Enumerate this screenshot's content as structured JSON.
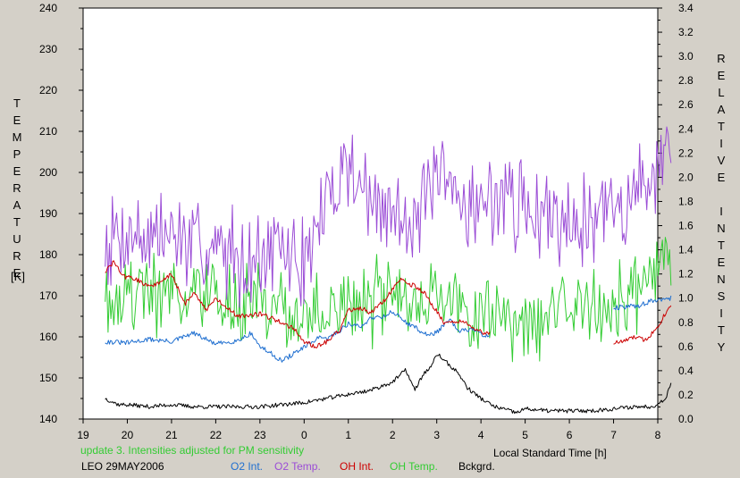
{
  "chart_data": {
    "type": "line",
    "left_axis": {
      "label_letters": [
        "T",
        "E",
        "M",
        "P",
        "E",
        "R",
        "A",
        "T",
        "U",
        "R",
        "E"
      ],
      "unit": "[K]",
      "ylim": [
        140,
        240
      ],
      "ticks": [
        140,
        150,
        160,
        170,
        180,
        190,
        200,
        210,
        220,
        230,
        240
      ]
    },
    "right_axis": {
      "label_words": [
        [
          "R",
          "E",
          "L",
          "A",
          "T",
          "I",
          "V",
          "E"
        ],
        [
          "I",
          "N",
          "T",
          "E",
          "N",
          "S",
          "I",
          "T",
          "Y"
        ]
      ],
      "ylim": [
        0.0,
        3.4
      ],
      "ticks": [
        "0.0",
        "0.2",
        "0.4",
        "0.6",
        "0.8",
        "1.0",
        "1.2",
        "1.4",
        "1.6",
        "1.8",
        "2.0",
        "2.2",
        "2.4",
        "2.6",
        "2.8",
        "3.0",
        "3.2",
        "3.4"
      ]
    },
    "x_axis": {
      "label": "Local Standard Time [h]",
      "tick_labels": [
        "19",
        "20",
        "21",
        "22",
        "23",
        "0",
        "1",
        "2",
        "3",
        "4",
        "5",
        "6",
        "7",
        "8"
      ],
      "xlim": [
        19,
        32
      ]
    },
    "notes": {
      "update": "update 3. Intensities adjusted for PM sensitivity",
      "site_date": "LEO 29MAY2006"
    },
    "series": [
      {
        "name": "O2 Int.",
        "color": "#1f6fd0",
        "axis": "right",
        "style": "smooth",
        "x": [
          19.5,
          20.0,
          20.5,
          21.0,
          21.5,
          22.0,
          22.5,
          22.8,
          23.0,
          23.3,
          23.5,
          23.8,
          24.0,
          24.3,
          24.5,
          24.8,
          25.0,
          25.3,
          25.5,
          25.8,
          26.0,
          26.3,
          26.5,
          26.8,
          27.0,
          27.3,
          27.5,
          27.8,
          28.0,
          28.2
        ],
        "y": [
          0.64,
          0.63,
          0.66,
          0.64,
          0.71,
          0.62,
          0.65,
          0.71,
          0.6,
          0.53,
          0.48,
          0.55,
          0.59,
          0.67,
          0.66,
          0.73,
          0.79,
          0.76,
          0.84,
          0.85,
          0.89,
          0.8,
          0.76,
          0.69,
          0.72,
          0.82,
          0.72,
          0.75,
          0.7,
          0.69
        ]
      },
      {
        "name": "OH Int.",
        "color": "#cc0000",
        "axis": "right",
        "style": "smooth",
        "x": [
          19.5,
          19.7,
          19.9,
          20.1,
          20.5,
          20.7,
          21.0,
          21.3,
          21.5,
          21.8,
          22.0,
          22.5,
          23.0,
          23.3,
          23.5,
          23.8,
          24.0,
          24.3,
          24.5,
          24.8,
          25.0,
          25.3,
          25.5,
          25.8,
          26.0,
          26.2,
          26.5,
          26.7,
          27.0,
          27.2,
          27.5,
          27.8,
          28.0,
          28.2,
          28.2
        ],
        "y": [
          1.22,
          1.3,
          1.18,
          1.17,
          1.1,
          1.12,
          1.2,
          0.95,
          1.05,
          0.9,
          1.0,
          0.85,
          0.87,
          0.83,
          0.8,
          0.74,
          0.63,
          0.6,
          0.64,
          0.73,
          0.9,
          0.92,
          0.88,
          0.97,
          1.08,
          1.15,
          1.1,
          1.05,
          0.89,
          0.78,
          0.81,
          0.77,
          0.72,
          0.7,
          0.6
        ]
      },
      {
        "name": "OH Int.",
        "color": "#cc0000",
        "axis": "right",
        "style": "smooth",
        "x": [
          31.0,
          31.2,
          31.5,
          31.7,
          31.9,
          32.0,
          32.3
        ],
        "y": [
          0.63,
          0.64,
          0.68,
          0.65,
          0.72,
          0.77,
          0.95
        ]
      },
      {
        "name": "O2 Int.",
        "color": "#1f6fd0",
        "axis": "right",
        "style": "smooth",
        "x": [
          31.0,
          31.3,
          31.6,
          31.9,
          32.1,
          32.3
        ],
        "y": [
          0.92,
          0.93,
          0.94,
          0.98,
          0.99,
          1.0
        ]
      },
      {
        "name": "O2 Temp.",
        "color": "#9b4dd6",
        "axis": "left",
        "style": "noisy",
        "amp": 14,
        "seed": 7,
        "x": [
          19.5,
          20.0,
          20.5,
          21.0,
          21.5,
          22.0,
          22.5,
          23.0,
          23.5,
          24.0,
          24.3,
          24.6,
          24.9,
          25.2,
          25.5,
          25.8,
          26.0,
          26.5,
          27.0,
          27.5,
          28.0,
          28.5,
          29.0,
          29.5,
          30.0,
          30.5,
          31.0,
          31.5,
          31.8,
          32.1,
          32.3
        ],
        "y": [
          184,
          186,
          184,
          185,
          182,
          181,
          181,
          179,
          181,
          178,
          186,
          194,
          203,
          199,
          193,
          190,
          190,
          190,
          196,
          194,
          192,
          195,
          191,
          190,
          190,
          189,
          192,
          194,
          200,
          203,
          198
        ]
      },
      {
        "name": "OH Temp.",
        "color": "#33cc33",
        "axis": "left",
        "style": "noisy",
        "amp": 12,
        "seed": 19,
        "x": [
          19.5,
          20.0,
          20.5,
          21.0,
          21.5,
          22.0,
          22.5,
          23.0,
          23.5,
          24.0,
          24.5,
          25.0,
          25.5,
          26.0,
          26.5,
          27.0,
          27.5,
          28.0,
          28.5,
          29.0,
          29.5,
          30.0,
          30.5,
          31.0,
          31.5,
          32.0,
          32.3
        ],
        "y": [
          171,
          170,
          171,
          171,
          170,
          168,
          168,
          168,
          166,
          164,
          166,
          167,
          168,
          170,
          171,
          170,
          169,
          167,
          165,
          163,
          166,
          167,
          168,
          168,
          169,
          178,
          178
        ]
      },
      {
        "name": "Bckgrd.",
        "color": "#000000",
        "axis": "left",
        "style": "smooth",
        "x": [
          19.5,
          19.8,
          20.0,
          20.5,
          21.0,
          21.5,
          22.0,
          22.5,
          23.0,
          23.5,
          24.0,
          24.5,
          25.0,
          25.5,
          26.0,
          26.3,
          26.5,
          26.7,
          26.9,
          27.0,
          27.2,
          27.5,
          27.7,
          28.0,
          28.3,
          28.5,
          28.8,
          29.0,
          29.5,
          30.0,
          30.5,
          31.0,
          31.5,
          31.8,
          32.0,
          32.2,
          32.3
        ],
        "y": [
          145,
          143.5,
          143.5,
          143,
          143.5,
          143,
          143,
          143,
          143,
          143.5,
          144,
          145,
          146,
          147,
          149,
          152,
          147,
          151,
          153,
          156,
          154,
          151,
          147.5,
          145,
          143,
          142.5,
          141.5,
          142.5,
          142,
          142,
          142,
          142.5,
          143,
          143,
          143.5,
          145.5,
          149
        ]
      }
    ],
    "legend": {
      "placement": "bottom",
      "items": [
        {
          "label": "O2 Int.",
          "color": "#1f6fd0"
        },
        {
          "label": "O2 Temp.",
          "color": "#9b4dd6"
        },
        {
          "label": "OH Int.",
          "color": "#cc0000"
        },
        {
          "label": "OH Temp.",
          "color": "#33cc33"
        },
        {
          "label": "Bckgrd.",
          "color": "#000000"
        }
      ]
    }
  }
}
